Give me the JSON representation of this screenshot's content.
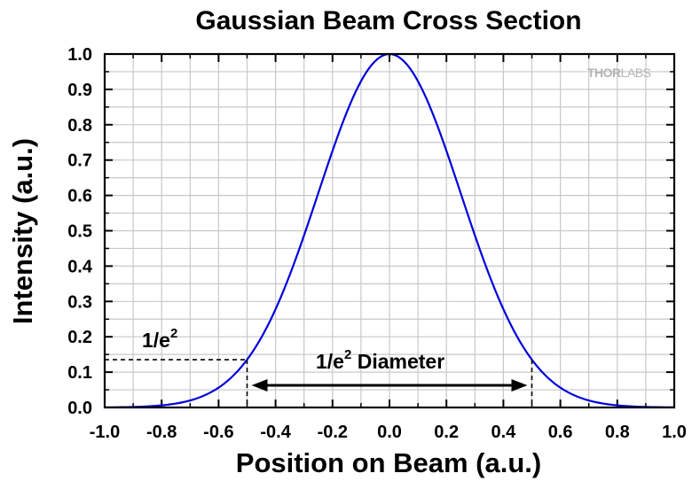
{
  "chart_data": {
    "type": "line",
    "title": "Gaussian Beam Cross Section",
    "xlabel": "Position on Beam (a.u.)",
    "ylabel": "Intensity (a.u.)",
    "xlim": [
      -1.0,
      1.0
    ],
    "ylim": [
      0.0,
      1.0
    ],
    "x_ticks": [
      "-1.0",
      "-0.8",
      "-0.6",
      "-0.4",
      "-0.2",
      "0.0",
      "0.2",
      "0.4",
      "0.6",
      "0.8",
      "1.0"
    ],
    "y_ticks": [
      "0.0",
      "0.1",
      "0.2",
      "0.3",
      "0.4",
      "0.5",
      "0.6",
      "0.7",
      "0.8",
      "0.9",
      "1.0"
    ],
    "grid": true,
    "series": [
      {
        "color": "#0000dd",
        "function": "exp(-2*x^2/0.5^2)",
        "x": [
          -1.0,
          -0.9,
          -0.8,
          -0.7,
          -0.6,
          -0.5,
          -0.4,
          -0.3,
          -0.2,
          -0.1,
          0.0,
          0.1,
          0.2,
          0.3,
          0.4,
          0.5,
          0.6,
          0.7,
          0.8,
          0.9,
          1.0
        ],
        "y": [
          0.0003,
          0.0015,
          0.006,
          0.0198,
          0.0561,
          0.1353,
          0.278,
          0.4868,
          0.7261,
          0.9231,
          1.0,
          0.9231,
          0.7261,
          0.4868,
          0.278,
          0.1353,
          0.0561,
          0.0198,
          0.006,
          0.0015,
          0.0003
        ]
      }
    ],
    "annotations": {
      "level_label": "1/e",
      "level_label_sup": "2",
      "level_value": 0.1353,
      "diameter_label": "1/e",
      "diameter_label_sup": "2",
      "diameter_label_suffix": " Diameter",
      "diameter_from": -0.5,
      "diameter_to": 0.5
    },
    "watermark": {
      "part1": "THOR",
      "part2": "LABS"
    }
  }
}
